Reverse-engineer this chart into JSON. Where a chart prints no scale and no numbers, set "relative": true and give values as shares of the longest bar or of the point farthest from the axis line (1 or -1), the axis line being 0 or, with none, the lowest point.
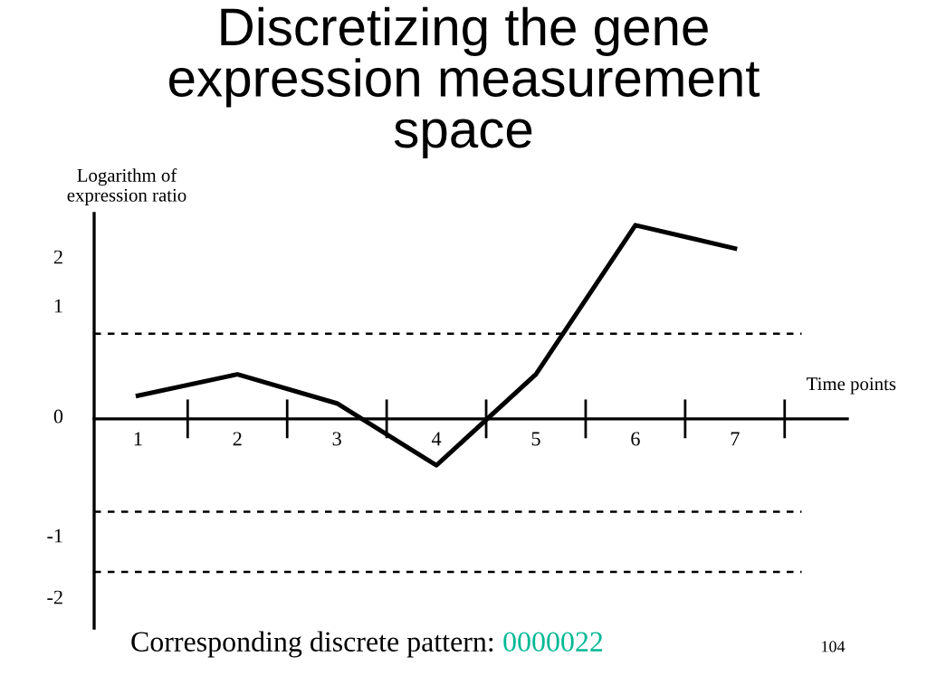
{
  "chart_data": {
    "type": "line",
    "title": "Discretizing the gene\nexpression measurement\nspace",
    "ylabel": "Logarithm of\nexpression ratio",
    "xlabel": "Time points",
    "categories": [
      "1",
      "2",
      "3",
      "4",
      "5",
      "6",
      "7"
    ],
    "relative": true,
    "series": [
      {
        "color": "#000000",
        "values": [
          0.12,
          0.23,
          0.08,
          -0.24,
          0.23,
          1,
          0.88
        ]
      }
    ],
    "ref_lines": [
      {
        "axis": "y",
        "value": 0.44,
        "color": "#000000",
        "line_style": "dashed"
      },
      {
        "axis": "y",
        "value": -0.48,
        "color": "#000000",
        "line_style": "dashed"
      },
      {
        "axis": "y",
        "value": -0.79,
        "color": "#000000",
        "line_style": "dashed"
      }
    ],
    "annotations": [
      "2",
      "1",
      "0",
      "-1",
      "-2",
      "Corresponding discrete pattern:",
      "0000022",
      "104"
    ],
    "grid": false,
    "legend": false,
    "marker": "none",
    "line_style": "solid"
  }
}
